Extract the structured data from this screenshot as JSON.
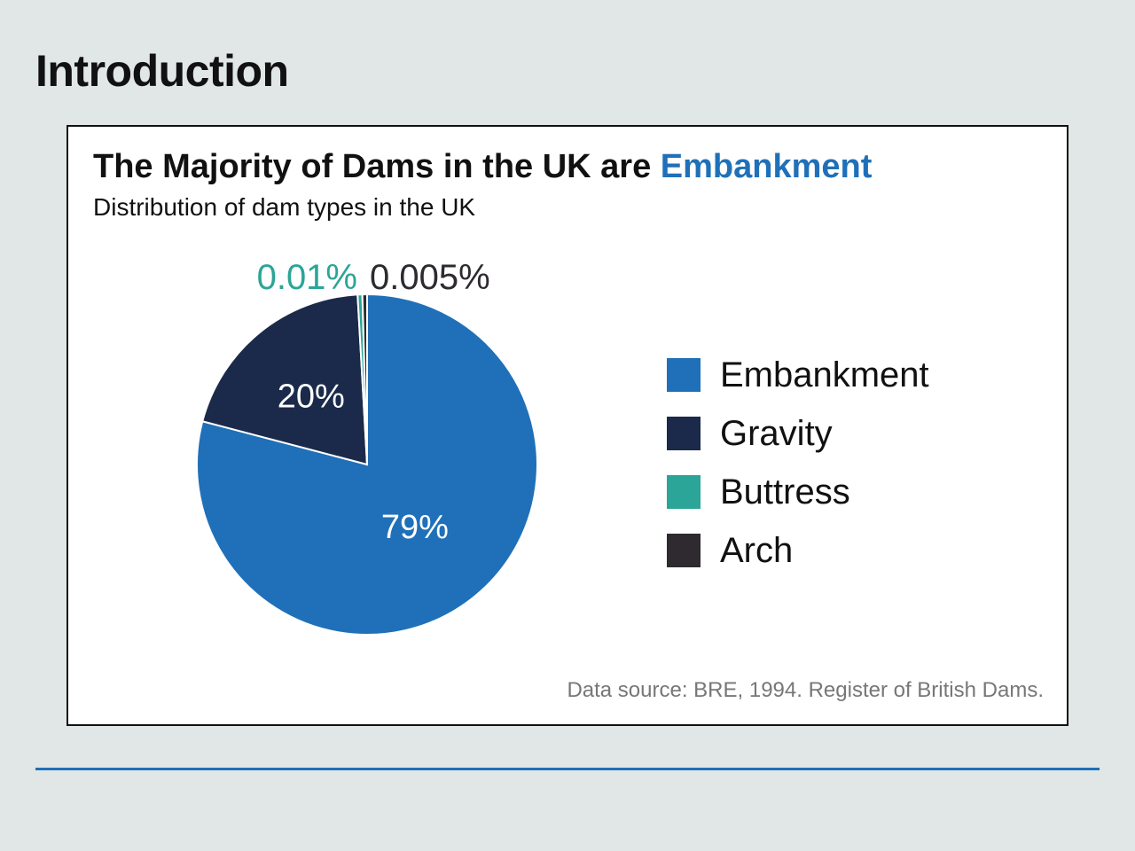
{
  "page": {
    "heading": "Introduction",
    "rule_color": "#1f70b8"
  },
  "chart_data": {
    "type": "pie",
    "title": "The Majority of Dams in the UK are ",
    "title_accent": "Embankment",
    "subtitle": "Distribution of dam types in the UK",
    "source": "Data source: BRE, 1994. Register of British Dams.",
    "legend_position": "right",
    "slices": [
      {
        "name": "Embankment",
        "value": 79,
        "label": "79%",
        "color": "#1f70b8",
        "label_color": "#ffffff"
      },
      {
        "name": "Gravity",
        "value": 20,
        "label": "20%",
        "color": "#1b2a4a",
        "label_color": "#ffffff"
      },
      {
        "name": "Buttress",
        "value": 0.01,
        "label": "0.01%",
        "color": "#2ba597",
        "label_color": "#2ba597"
      },
      {
        "name": "Arch",
        "value": 0.005,
        "label": "0.005%",
        "color": "#2e2a30",
        "label_color": "#2e2a30"
      }
    ]
  }
}
